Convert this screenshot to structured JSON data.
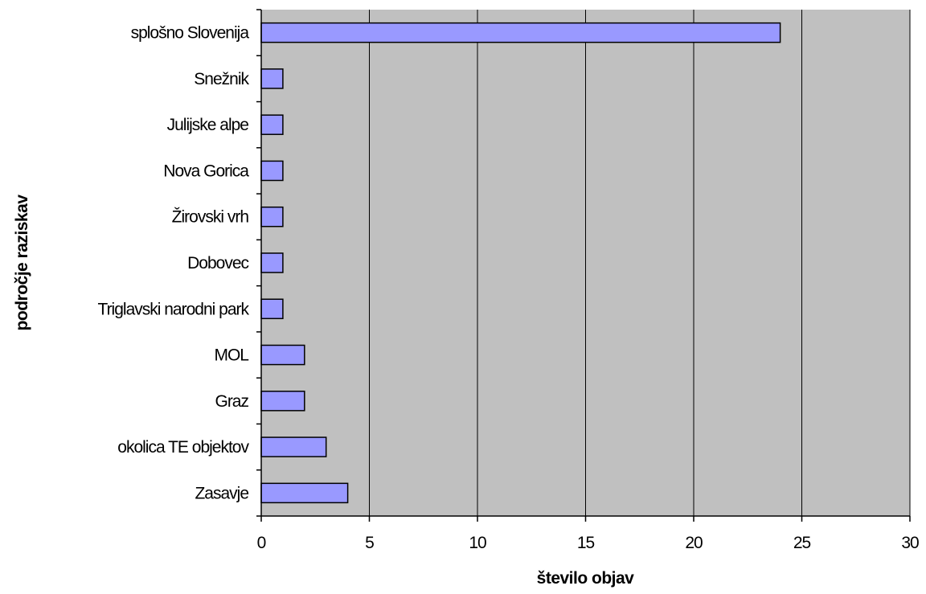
{
  "chart_data": {
    "type": "bar",
    "orientation": "horizontal",
    "categories": [
      "splošno Slovenija",
      "Snežnik",
      "Julijske alpe",
      "Nova Gorica",
      "Žirovski vrh",
      "Dobovec",
      "Triglavski narodni park",
      "MOL",
      "Graz",
      "okolica TE objektov",
      "Zasavje"
    ],
    "values": [
      24,
      1,
      1,
      1,
      1,
      1,
      1,
      2,
      2,
      3,
      4
    ],
    "xlabel": "število objav",
    "ylabel": "področje raziskav",
    "xlim": [
      0,
      30
    ],
    "xticks": [
      0,
      5,
      10,
      15,
      20,
      25,
      30
    ],
    "grid": "vertical",
    "legend": "none",
    "colors": {
      "bar_fill": "#9999ff",
      "bar_stroke": "#000000",
      "plot_background": "#c0c0c0",
      "gridline": "#000000"
    }
  }
}
